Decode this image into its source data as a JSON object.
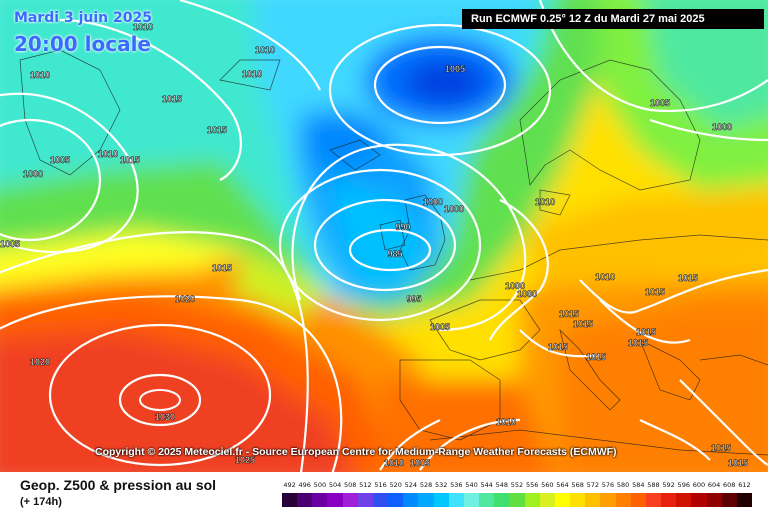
{
  "header": {
    "date_label": "Mardi 3 juin 2025",
    "time_label": "20:00 locale",
    "run_label": "Run ECMWF 0.25° 12 Z du Mardi 27 mai 2025"
  },
  "copyright": "Copyright © 2025 Meteociel.fr - Source European Centre for Medium-Range Weather Forecasts (ECMWF)",
  "footer": {
    "title": "Geop. Z500 & pression au sol",
    "subtitle": "(+ 174h)"
  },
  "legend": {
    "ticks": [
      "492",
      "496",
      "500",
      "504",
      "508",
      "512",
      "516",
      "520",
      "524",
      "528",
      "532",
      "536",
      "540",
      "544",
      "548",
      "552",
      "556",
      "560",
      "564",
      "568",
      "572",
      "576",
      "580",
      "584",
      "588",
      "592",
      "596",
      "600",
      "604",
      "608",
      "612"
    ],
    "colors": [
      "#2a0038",
      "#4a0070",
      "#6a00a0",
      "#8a00c0",
      "#a020d8",
      "#7040e8",
      "#3050f0",
      "#1060ff",
      "#0088ff",
      "#00a8ff",
      "#00c8ff",
      "#40e0ff",
      "#70f0e0",
      "#50e8a0",
      "#40e070",
      "#60e040",
      "#a0f020",
      "#d8f020",
      "#ffff00",
      "#ffe000",
      "#ffc000",
      "#ffa000",
      "#ff8000",
      "#ff6000",
      "#f84020",
      "#e82010",
      "#d01000",
      "#b00000",
      "#900000",
      "#600000",
      "#200000"
    ]
  },
  "isobar_labels": [
    "1010",
    "1010",
    "1010",
    "1010",
    "1015",
    "1015",
    "1015",
    "1005",
    "1000",
    "1005",
    "1005",
    "1000",
    "1000",
    "990",
    "985",
    "995",
    "1000",
    "1010",
    "1015",
    "1020",
    "1020",
    "1030",
    "1025",
    "1005",
    "1000",
    "1000",
    "1015",
    "1010",
    "1015",
    "1015",
    "1015",
    "1015",
    "1015",
    "1015",
    "1010",
    "1005",
    "1015",
    "1010",
    "1010",
    "1015",
    "1015",
    "1005"
  ]
}
